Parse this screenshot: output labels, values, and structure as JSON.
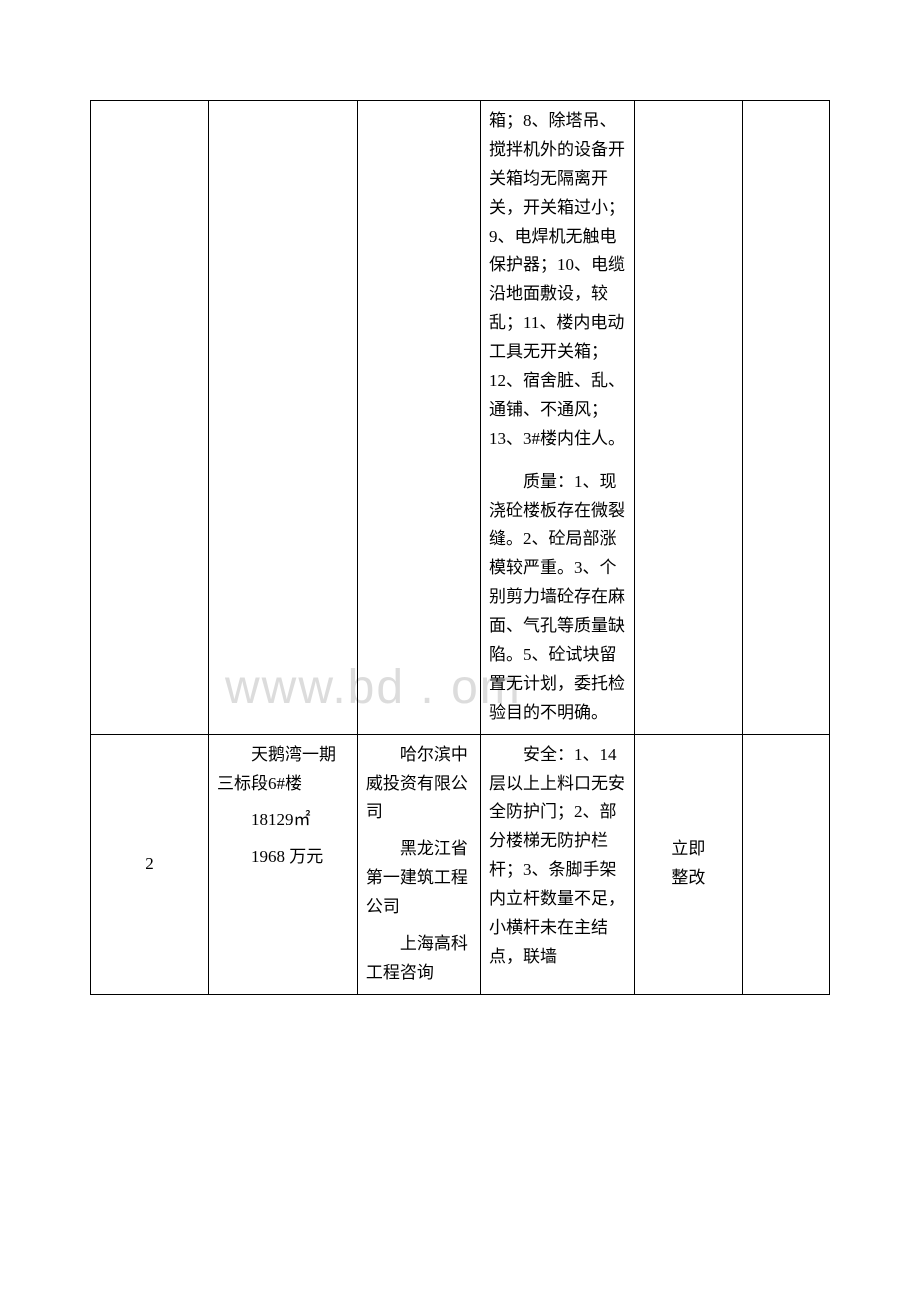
{
  "watermark_text": "www.bd    .  om",
  "table": {
    "row1": {
      "col4_p1": "箱；8、除塔吊、搅拌机外的设备开关箱均无隔离开关，开关箱过小；9、电焊机无触电保护器；10、电缆沿地面敷设，较乱；11、楼内电动工具无开关箱；12、宿舍脏、乱、通铺、不通风；13、3#楼内住人。",
      "col4_p2": "　　质量：1、现浇砼楼板存在微裂缝。2、砼局部涨模较严重。3、个别剪力墙砼存在麻面、气孔等质量缺陷。5、砼试块留置无计划，委托检验目的不明确。"
    },
    "row2": {
      "col1": "2",
      "col2_l1": "　　天鹅湾一期三标段6#楼",
      "col2_l2": "　　18129㎡",
      "col2_l3": "　　1968 万元",
      "col3_l1": "　　哈尔滨中威投资有限公司",
      "col3_l2": "　　黑龙江省第一建筑工程公司",
      "col3_l3": "　　上海高科工程咨询",
      "col4": "　　安全：1、14 层以上上料口无安全防护门；2、部分楼梯无防护栏杆；3、条脚手架内立杆数量不足，小横杆未在主结点，联墙",
      "col5_l1": "立即",
      "col5_l2": "整改"
    }
  }
}
